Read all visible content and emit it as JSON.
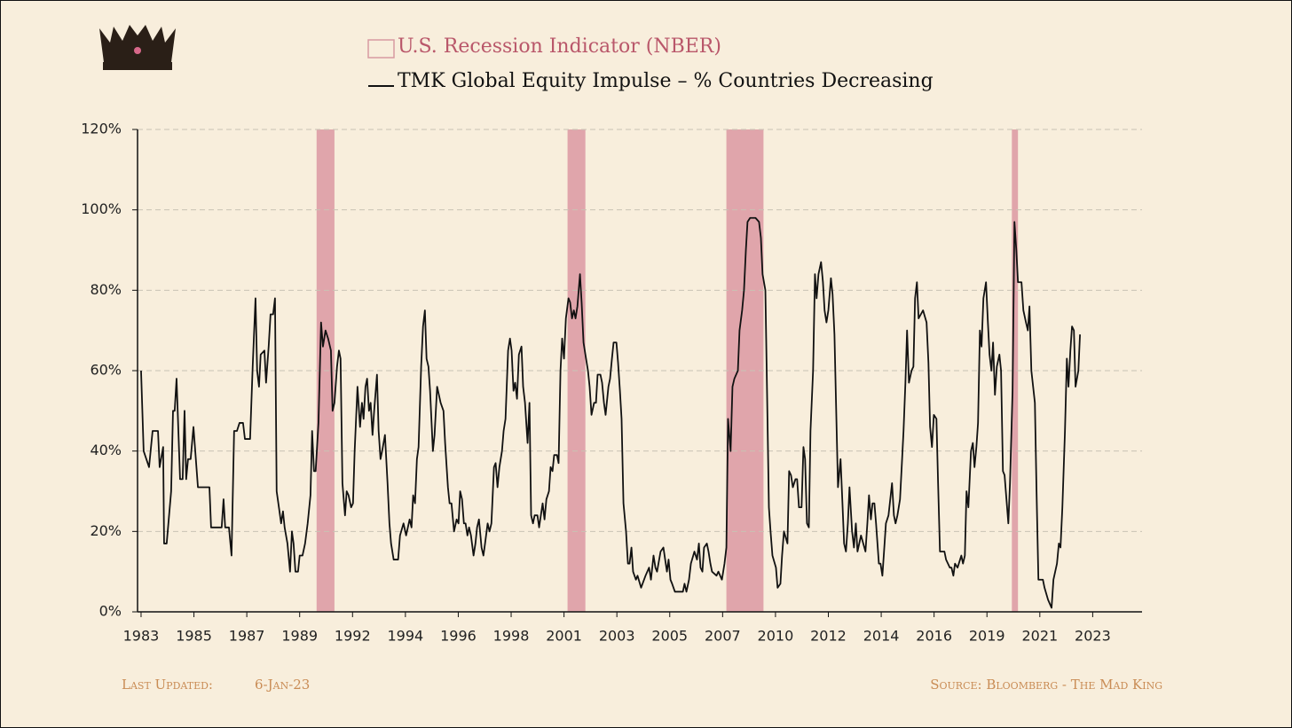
{
  "chart_data": {
    "type": "line",
    "recessions": {
      "name": "U.S. Recession Indicator (NBER)",
      "color": "#e0a5ab",
      "spans": [
        [
          1990.47,
          1991.23
        ],
        [
          2001.15,
          2001.91
        ],
        [
          2007.91,
          2009.49
        ],
        [
          2020.06,
          2020.32
        ]
      ]
    },
    "series": [
      {
        "name": "TMK Global Equity Impulse – % Countries Decreasing",
        "color": "#111111",
        "values": [
          60,
          40,
          36,
          45,
          45,
          36,
          41,
          17,
          17,
          30,
          50,
          50,
          58,
          33,
          33,
          50,
          33,
          38,
          38,
          46,
          31,
          31,
          21,
          21,
          28,
          21,
          21,
          14,
          45,
          45,
          47,
          47,
          43,
          43,
          61,
          78,
          60,
          56,
          64,
          65,
          57,
          66,
          74,
          74,
          78,
          30,
          25,
          22,
          25,
          21,
          17,
          10,
          20,
          17,
          10,
          10,
          14,
          14,
          17,
          22,
          29,
          45,
          35,
          35,
          47,
          72,
          66,
          70,
          68,
          65,
          50,
          52,
          61,
          65,
          63,
          32,
          24,
          30,
          29,
          26,
          27,
          40,
          56,
          46,
          52,
          48,
          56,
          58,
          50,
          52,
          44,
          50,
          59,
          45,
          38,
          40,
          44,
          32,
          22,
          17,
          13,
          13,
          19,
          22,
          19,
          23,
          21,
          29,
          27,
          38,
          41,
          61,
          71,
          75,
          63,
          61,
          55,
          40,
          44,
          56,
          52,
          50,
          42,
          31,
          27,
          27,
          20,
          23,
          22,
          30,
          28,
          22,
          22,
          19,
          21,
          19,
          14,
          17,
          21,
          23,
          16,
          14,
          17,
          22,
          20,
          22,
          36,
          37,
          31,
          36,
          40,
          45,
          48,
          65,
          68,
          65,
          55,
          57,
          53,
          64,
          66,
          56,
          52,
          42,
          52,
          24,
          22,
          24,
          24,
          21,
          27,
          23,
          28,
          30,
          36,
          35,
          39,
          39,
          37,
          60,
          68,
          63,
          73,
          78,
          77,
          73,
          75,
          73,
          76,
          84,
          77,
          67,
          64,
          60,
          56,
          49,
          52,
          52,
          59,
          59,
          57,
          52,
          49,
          56,
          58,
          63,
          67,
          67,
          62,
          55,
          48,
          27,
          20,
          12,
          12,
          16,
          10,
          8,
          9,
          6,
          9,
          11,
          8,
          14,
          11,
          10,
          15,
          16,
          10,
          13,
          8,
          7,
          5,
          5,
          7,
          5,
          8,
          12,
          15,
          13,
          17,
          11,
          10,
          16,
          17,
          15,
          12,
          10,
          9,
          10,
          8,
          12,
          16,
          48,
          40,
          56,
          58,
          60,
          70,
          75,
          80,
          90,
          97,
          98,
          98,
          97,
          93,
          84,
          80,
          55,
          26,
          20,
          14,
          11,
          6,
          7,
          14,
          20,
          17,
          35,
          34,
          31,
          33,
          33,
          26,
          26,
          41,
          38,
          22,
          21,
          45,
          60,
          84,
          78,
          84,
          87,
          82,
          75,
          72,
          75,
          83,
          79,
          69,
          51,
          31,
          38,
          27,
          17,
          15,
          22,
          31,
          20,
          16,
          22,
          15,
          19,
          15,
          22,
          29,
          23,
          27,
          27,
          22,
          12,
          12,
          9,
          15,
          22,
          24,
          32,
          24,
          22,
          24,
          28,
          37,
          45,
          57,
          70,
          57,
          60,
          61,
          78,
          82,
          73,
          75,
          72,
          62,
          46,
          41,
          49,
          48,
          32,
          15,
          15,
          13,
          11,
          11,
          9,
          12,
          11,
          14,
          12,
          14,
          30,
          26,
          40,
          42,
          36,
          41,
          47,
          70,
          66,
          78,
          82,
          72,
          64,
          60,
          67,
          54,
          61,
          64,
          60,
          35,
          34,
          28,
          22,
          32,
          55,
          97,
          90,
          82,
          82,
          75,
          72,
          70,
          76,
          60,
          52,
          30,
          8,
          8,
          6,
          3,
          1,
          8,
          12,
          17,
          16,
          26,
          45,
          63,
          56,
          65,
          71,
          70,
          56,
          60,
          69
        ]
      }
    ],
    "x": [
      1983.0,
      1983.11,
      1983.34,
      1983.49,
      1983.72,
      1983.79,
      1983.94,
      1983.98,
      1984.09,
      1984.28,
      1984.36,
      1984.43,
      1984.51,
      1984.66,
      1984.77,
      1984.85,
      1984.92,
      1985.0,
      1985.11,
      1985.23,
      1985.42,
      1985.91,
      1985.98,
      1986.43,
      1986.51,
      1986.58,
      1986.74,
      1986.85,
      1986.96,
      1987.08,
      1987.19,
      1987.34,
      1987.42,
      1987.64,
      1987.75,
      1987.87,
      1987.94,
      1988.02,
      1988.09,
      1988.25,
      1988.32,
      1988.43,
      1988.51,
      1988.62,
      1988.7,
      1988.77,
      1988.89,
      1988.96,
      1989.04,
      1989.11,
      1989.23,
      1989.34,
      1989.42,
      1989.49,
      1989.57,
      1989.68,
      1989.75,
      1989.87,
      1989.98,
      1990.09,
      1990.21,
      1990.28,
      1990.36,
      1990.43,
      1990.55,
      1990.66,
      1990.74,
      1990.85,
      1990.96,
      1991.08,
      1991.15,
      1991.23,
      1991.34,
      1991.42,
      1991.49,
      1991.57,
      1991.68,
      1991.75,
      1991.83,
      1991.94,
      1992.02,
      1992.09,
      1992.21,
      1992.32,
      1992.4,
      1992.47,
      1992.55,
      1992.62,
      1992.7,
      1992.77,
      1992.85,
      1992.92,
      1993.04,
      1993.11,
      1993.19,
      1993.26,
      1993.38,
      1993.49,
      1993.57,
      1993.64,
      1993.75,
      1993.94,
      1994.02,
      1994.17,
      1994.28,
      1994.43,
      1994.51,
      1994.58,
      1994.66,
      1994.74,
      1994.81,
      1994.92,
      1995.0,
      1995.08,
      1995.15,
      1995.23,
      1995.3,
      1995.42,
      1995.49,
      1995.6,
      1995.75,
      1995.87,
      1995.94,
      1996.06,
      1996.13,
      1996.21,
      1996.32,
      1996.43,
      1996.51,
      1996.58,
      1996.66,
      1996.74,
      1996.81,
      1996.89,
      1996.96,
      1997.04,
      1997.15,
      1997.23,
      1997.3,
      1997.38,
      1997.49,
      1997.57,
      1997.64,
      1997.75,
      1997.83,
      1997.91,
      1998.02,
      1998.09,
      1998.17,
      1998.25,
      1998.36,
      1998.43,
      1998.51,
      1998.62,
      1998.7,
      1998.77,
      1998.85,
      1998.92,
      1999.0,
      1999.08,
      1999.19,
      1999.26,
      1999.34,
      1999.45,
      1999.53,
      1999.6,
      1999.68,
      1999.75,
      1999.87,
      1999.94,
      2000.09,
      2000.17,
      2000.25,
      2000.36,
      2000.43,
      2000.51,
      2000.58,
      2000.7,
      2000.77,
      2000.85,
      2000.92,
      2001.0,
      2001.08,
      2001.19,
      2001.26,
      2001.34,
      2001.42,
      2001.49,
      2001.57,
      2001.68,
      2001.75,
      2001.83,
      2001.91,
      2002.02,
      2002.09,
      2002.17,
      2002.28,
      2002.36,
      2002.43,
      2002.55,
      2002.62,
      2002.7,
      2002.77,
      2002.89,
      2002.96,
      2003.04,
      2003.11,
      2003.23,
      2003.3,
      2003.38,
      2003.45,
      2003.53,
      2003.64,
      2003.72,
      2003.79,
      2003.87,
      2003.94,
      2004.06,
      2004.13,
      2004.28,
      2004.47,
      2004.62,
      2004.7,
      2004.81,
      2004.89,
      2004.96,
      2005.11,
      2005.23,
      2005.38,
      2005.45,
      2005.53,
      2005.6,
      2005.72,
      2006.06,
      2006.13,
      2006.21,
      2006.32,
      2006.4,
      2006.55,
      2006.66,
      2006.74,
      2006.81,
      2006.89,
      2006.96,
      2007.08,
      2007.15,
      2007.23,
      2007.3,
      2007.49,
      2007.57,
      2007.72,
      2007.83,
      2007.91,
      2007.98,
      2008.09,
      2008.17,
      2008.25,
      2008.4,
      2008.47,
      2008.58,
      2008.66,
      2008.74,
      2008.81,
      2008.92,
      2009.15,
      2009.3,
      2009.38,
      2009.45,
      2009.57,
      2009.64,
      2009.72,
      2009.79,
      2009.87,
      2010.02,
      2010.09,
      2010.21,
      2010.28,
      2010.36,
      2010.51,
      2010.58,
      2010.66,
      2010.74,
      2010.85,
      2010.92,
      2011.0,
      2011.11,
      2011.19,
      2011.26,
      2011.34,
      2011.42,
      2011.49,
      2011.6,
      2011.68,
      2011.75,
      2011.83,
      2011.94,
      2012.02,
      2012.09,
      2012.17,
      2012.25,
      2012.36,
      2012.43,
      2012.51,
      2012.58,
      2012.66,
      2012.77,
      2012.85,
      2012.92,
      2013.0,
      2013.08,
      2013.15,
      2013.26,
      2013.34,
      2013.42,
      2013.49,
      2013.64,
      2013.83,
      2013.91,
      2013.98,
      2014.06,
      2014.13,
      2014.21,
      2014.28,
      2014.4,
      2014.47,
      2014.55,
      2014.62,
      2014.7,
      2014.81,
      2014.96,
      2015.04,
      2015.11,
      2015.19,
      2015.3,
      2015.38,
      2015.45,
      2015.53,
      2015.6,
      2015.68,
      2015.79,
      2015.87,
      2015.94,
      2016.02,
      2016.09,
      2016.28,
      2016.43,
      2016.51,
      2016.58,
      2016.66,
      2016.74,
      2016.85,
      2016.92,
      2017.0,
      2017.19,
      2017.26,
      2017.42,
      2017.49,
      2017.57,
      2017.64,
      2017.75,
      2017.91,
      2017.98,
      2018.06,
      2018.13,
      2018.21,
      2018.32,
      2018.4,
      2018.47,
      2018.55,
      2018.62,
      2018.7,
      2018.77,
      2018.85,
      2018.96,
      2019.04,
      2019.11,
      2019.19,
      2019.26,
      2019.34,
      2019.42,
      2019.53,
      2019.6,
      2019.68,
      2019.75,
      2019.83,
      2019.91,
      2019.98,
      2020.09,
      2020.17,
      2020.25,
      2020.32,
      2020.47,
      2020.55,
      2020.66,
      2020.74,
      2020.81,
      2020.89,
      2021.04,
      2021.11,
      2021.19,
      2021.38,
      2021.45,
      2021.6,
      2021.75,
      2021.83,
      2021.98,
      2022.06,
      2022.13,
      2022.21,
      2022.32,
      2022.4,
      2022.47,
      2022.55,
      2022.62,
      2022.7,
      2022.77,
      2022.89,
      2022.96
    ],
    "xlim": [
      1982.85,
      2025.6
    ],
    "xticks": [
      {
        "value": 1983,
        "label": "1983"
      },
      {
        "value": 1985.25,
        "label": "1985"
      },
      {
        "value": 1987.5,
        "label": "1987"
      },
      {
        "value": 1989.75,
        "label": "1989"
      },
      {
        "value": 1992,
        "label": "1992"
      },
      {
        "value": 1994.25,
        "label": "1994"
      },
      {
        "value": 1996.5,
        "label": "1996"
      },
      {
        "value": 1998.75,
        "label": "1998"
      },
      {
        "value": 2001,
        "label": "2001"
      },
      {
        "value": 2003.25,
        "label": "2003"
      },
      {
        "value": 2005.5,
        "label": "2005"
      },
      {
        "value": 2007.75,
        "label": "2007"
      },
      {
        "value": 2010,
        "label": "2010"
      },
      {
        "value": 2012.25,
        "label": "2012"
      },
      {
        "value": 2014.5,
        "label": "2014"
      },
      {
        "value": 2016.75,
        "label": "2016"
      },
      {
        "value": 2019,
        "label": "2019"
      },
      {
        "value": 2021.25,
        "label": "2021"
      },
      {
        "value": 2023.5,
        "label": "2023"
      }
    ],
    "ylim": [
      0,
      120
    ],
    "yticks": [
      {
        "value": 0,
        "label": "0%"
      },
      {
        "value": 20,
        "label": "20%"
      },
      {
        "value": 40,
        "label": "40%"
      },
      {
        "value": 60,
        "label": "60%"
      },
      {
        "value": 80,
        "label": "80%"
      },
      {
        "value": 100,
        "label": "100%"
      },
      {
        "value": 120,
        "label": "120%"
      }
    ],
    "grid": true,
    "footer": {
      "updated_label": "Last Updated:",
      "updated_value": "6-Jan-23",
      "source": "Source: Bloomberg - The Mad King"
    }
  }
}
